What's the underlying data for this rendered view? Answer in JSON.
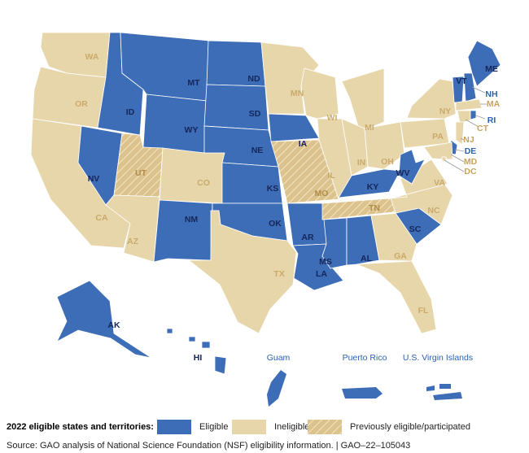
{
  "map": {
    "regions": [
      {
        "label": "WA",
        "status": "Ineligible"
      },
      {
        "label": "OR",
        "status": "Ineligible"
      },
      {
        "label": "CA",
        "status": "Ineligible"
      },
      {
        "label": "NV",
        "status": "Eligible"
      },
      {
        "label": "ID",
        "status": "Eligible"
      },
      {
        "label": "MT",
        "status": "Eligible"
      },
      {
        "label": "WY",
        "status": "Eligible"
      },
      {
        "label": "UT",
        "status": "Previously eligible/participated"
      },
      {
        "label": "CO",
        "status": "Ineligible"
      },
      {
        "label": "AZ",
        "status": "Ineligible"
      },
      {
        "label": "NM",
        "status": "Eligible"
      },
      {
        "label": "ND",
        "status": "Eligible"
      },
      {
        "label": "SD",
        "status": "Eligible"
      },
      {
        "label": "NE",
        "status": "Eligible"
      },
      {
        "label": "KS",
        "status": "Eligible"
      },
      {
        "label": "OK",
        "status": "Eligible"
      },
      {
        "label": "TX",
        "status": "Ineligible"
      },
      {
        "label": "MN",
        "status": "Ineligible"
      },
      {
        "label": "IA",
        "status": "Eligible"
      },
      {
        "label": "MO",
        "status": "Previously eligible/participated"
      },
      {
        "label": "AR",
        "status": "Eligible"
      },
      {
        "label": "LA",
        "status": "Eligible"
      },
      {
        "label": "WI",
        "status": "Ineligible"
      },
      {
        "label": "IL",
        "status": "Ineligible"
      },
      {
        "label": "MI",
        "status": "Ineligible"
      },
      {
        "label": "IN",
        "status": "Ineligible"
      },
      {
        "label": "OH",
        "status": "Ineligible"
      },
      {
        "label": "KY",
        "status": "Eligible"
      },
      {
        "label": "TN",
        "status": "Previously eligible/participated"
      },
      {
        "label": "MS",
        "status": "Eligible"
      },
      {
        "label": "AL",
        "status": "Eligible"
      },
      {
        "label": "GA",
        "status": "Ineligible"
      },
      {
        "label": "FL",
        "status": "Ineligible"
      },
      {
        "label": "SC",
        "status": "Eligible"
      },
      {
        "label": "NC",
        "status": "Ineligible"
      },
      {
        "label": "VA",
        "status": "Ineligible"
      },
      {
        "label": "WV",
        "status": "Eligible"
      },
      {
        "label": "PA",
        "status": "Ineligible"
      },
      {
        "label": "NY",
        "status": "Ineligible"
      },
      {
        "label": "VT",
        "status": "Eligible"
      },
      {
        "label": "NH",
        "status": "Eligible"
      },
      {
        "label": "ME",
        "status": "Eligible"
      },
      {
        "label": "MA",
        "status": "Ineligible"
      },
      {
        "label": "CT",
        "status": "Ineligible"
      },
      {
        "label": "RI",
        "status": "Eligible"
      },
      {
        "label": "NJ",
        "status": "Ineligible"
      },
      {
        "label": "DE",
        "status": "Eligible"
      },
      {
        "label": "MD",
        "status": "Ineligible"
      },
      {
        "label": "DC",
        "status": "Ineligible"
      },
      {
        "label": "AK",
        "status": "Eligible"
      },
      {
        "label": "HI",
        "status": "Eligible"
      }
    ],
    "territories": [
      {
        "label": "Guam",
        "status": "Eligible"
      },
      {
        "label": "Puerto Rico",
        "status": "Eligible"
      },
      {
        "label": "U.S. Virgin Islands",
        "status": "Eligible"
      }
    ]
  },
  "legend": {
    "title": "2022 eligible states and territories:",
    "items": [
      {
        "label": "Eligible",
        "color": "#3c6db6"
      },
      {
        "label": "Ineligible",
        "color": "#e8d6ab"
      },
      {
        "label": "Previously eligible/participated",
        "color": "#dcc28c",
        "hatch": true
      }
    ]
  },
  "source": "Source: GAO analysis of National Science Foundation (NSF) eligibility information.  |  GAO–22–105043"
}
